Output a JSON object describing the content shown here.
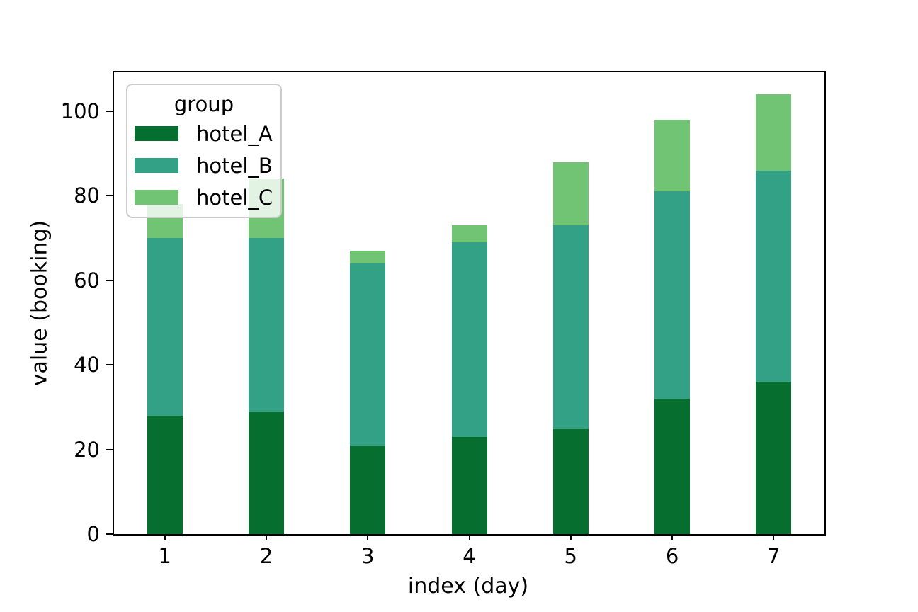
{
  "figure": {
    "background_color": "#ffffff",
    "xlabel": "index (day)",
    "ylabel": "value (booking)"
  },
  "legend": {
    "title": "group",
    "items": [
      {
        "label": "hotel_A",
        "color": "#066e2e"
      },
      {
        "label": "hotel_B",
        "color": "#32a185"
      },
      {
        "label": "hotel_C",
        "color": "#71c473"
      }
    ]
  },
  "chart_data": {
    "type": "bar",
    "stacked": true,
    "title": "",
    "xlabel": "index (day)",
    "ylabel": "value (booking)",
    "categories": [
      "1",
      "2",
      "3",
      "4",
      "5",
      "6",
      "7"
    ],
    "series": [
      {
        "name": "hotel_A",
        "color": "#066e2e",
        "values": [
          28,
          29,
          21,
          23,
          25,
          32,
          36
        ]
      },
      {
        "name": "hotel_B",
        "color": "#32a185",
        "values": [
          42,
          41,
          43,
          46,
          48,
          49,
          50
        ]
      },
      {
        "name": "hotel_C",
        "color": "#71c473",
        "values": [
          8,
          14,
          3,
          4,
          15,
          17,
          18
        ]
      }
    ],
    "stack_totals": [
      78,
      84,
      67,
      73,
      88,
      98,
      104
    ],
    "yticks": [
      0,
      20,
      40,
      60,
      80,
      100
    ],
    "ylim": [
      0,
      109.2
    ],
    "grid": false,
    "legend_title": "group",
    "legend_position": "upper-left",
    "axis_color": "#000000"
  }
}
